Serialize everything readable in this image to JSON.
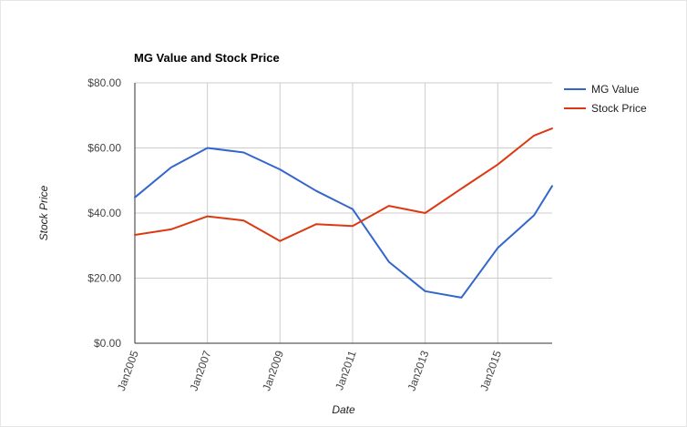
{
  "chart_data": {
    "type": "line",
    "title": "MG Value and Stock Price",
    "xlabel": "Date",
    "ylabel": "Stock Price",
    "x": [
      2005,
      2006,
      2007,
      2008,
      2009,
      2010,
      2011,
      2012,
      2013,
      2014,
      2015,
      2016,
      2016.5
    ],
    "x_ticks": [
      2005,
      2007,
      2009,
      2011,
      2013,
      2015
    ],
    "x_tick_labels": [
      "Jan2005",
      "Jan2007",
      "Jan2009",
      "Jan2011",
      "Jan2013",
      "Jan2015"
    ],
    "xlim": [
      2005,
      2016.5
    ],
    "ylim": [
      0,
      80
    ],
    "y_ticks": [
      0,
      20,
      40,
      60,
      80
    ],
    "y_tick_labels": [
      "$0.00",
      "$20.00",
      "$40.00",
      "$60.00",
      "$80.00"
    ],
    "grid": true,
    "legend_position": "right",
    "series": [
      {
        "name": "MG Value",
        "color": "#3366cc",
        "values": [
          44.8,
          54.0,
          60.0,
          58.6,
          53.4,
          46.8,
          41.2,
          25.0,
          16.0,
          14.0,
          29.3,
          39.3,
          48.3
        ]
      },
      {
        "name": "Stock Price",
        "color": "#dc3912",
        "values": [
          33.3,
          35.0,
          39.0,
          37.7,
          31.4,
          36.6,
          36.0,
          42.2,
          40.0,
          47.5,
          54.9,
          63.8,
          66.0
        ]
      }
    ]
  }
}
